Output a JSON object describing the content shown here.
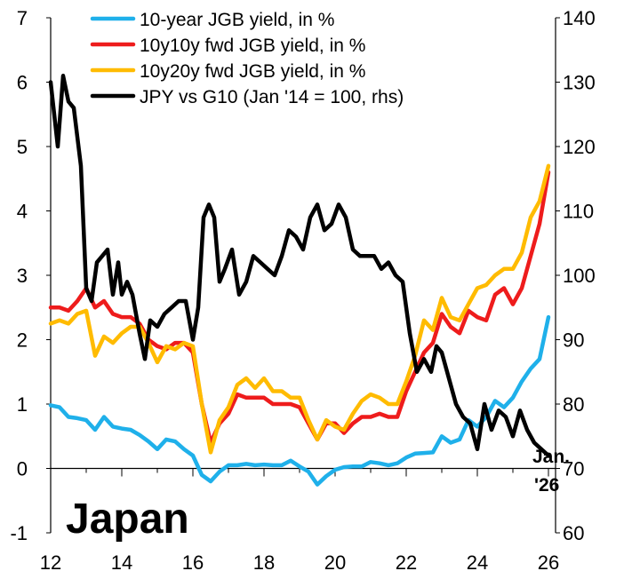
{
  "chart_data": {
    "type": "line",
    "title": "",
    "region_label": "Japan",
    "end_label": [
      "Jan.",
      "'26"
    ],
    "x_ticks": [
      "12",
      "14",
      "16",
      "18",
      "20",
      "22",
      "24",
      "26"
    ],
    "x_tick_values": [
      2012,
      2014,
      2016,
      2018,
      2020,
      2022,
      2024,
      2026
    ],
    "xlim": [
      2012,
      2026.2
    ],
    "y_left": {
      "ticks": [
        "-1",
        "0",
        "1",
        "2",
        "3",
        "4",
        "5",
        "6",
        "7"
      ],
      "tick_values": [
        -1,
        0,
        1,
        2,
        3,
        4,
        5,
        6,
        7
      ],
      "ylim": [
        -1,
        7
      ]
    },
    "y_right": {
      "ticks": [
        "60",
        "70",
        "80",
        "90",
        "100",
        "110",
        "120",
        "130",
        "140"
      ],
      "tick_values": [
        60,
        70,
        80,
        90,
        100,
        110,
        120,
        130,
        140
      ],
      "ylim": [
        60,
        140
      ]
    },
    "legend_position": "top",
    "grid": false,
    "series": [
      {
        "name": "10-year JGB yield, in %",
        "color": "#1fb0ea",
        "axis": "left",
        "x": [
          2012.0,
          2012.25,
          2012.5,
          2012.75,
          2013.0,
          2013.25,
          2013.5,
          2013.75,
          2014.0,
          2014.25,
          2014.5,
          2014.75,
          2015.0,
          2015.25,
          2015.5,
          2015.75,
          2016.0,
          2016.25,
          2016.5,
          2016.75,
          2017.0,
          2017.25,
          2017.5,
          2017.75,
          2018.0,
          2018.25,
          2018.5,
          2018.75,
          2019.0,
          2019.25,
          2019.5,
          2019.75,
          2020.0,
          2020.25,
          2020.5,
          2020.75,
          2021.0,
          2021.25,
          2021.5,
          2021.75,
          2022.0,
          2022.25,
          2022.5,
          2022.75,
          2023.0,
          2023.25,
          2023.5,
          2023.75,
          2024.0,
          2024.25,
          2024.5,
          2024.75,
          2025.0,
          2025.25,
          2025.5,
          2025.75,
          2026.0
        ],
        "values": [
          0.98,
          0.95,
          0.8,
          0.78,
          0.75,
          0.6,
          0.8,
          0.65,
          0.62,
          0.6,
          0.52,
          0.42,
          0.3,
          0.45,
          0.42,
          0.3,
          0.2,
          -0.1,
          -0.2,
          -0.05,
          0.05,
          0.05,
          0.07,
          0.05,
          0.06,
          0.05,
          0.05,
          0.12,
          0.03,
          -0.05,
          -0.25,
          -0.12,
          -0.02,
          0.02,
          0.03,
          0.03,
          0.1,
          0.08,
          0.05,
          0.08,
          0.17,
          0.23,
          0.24,
          0.25,
          0.5,
          0.4,
          0.45,
          0.75,
          0.65,
          0.8,
          1.05,
          0.95,
          1.1,
          1.35,
          1.55,
          1.7,
          2.35
        ]
      },
      {
        "name": "10y10y fwd JGB yield, in %",
        "color": "#ee1c1c",
        "axis": "left",
        "x": [
          2012.0,
          2012.25,
          2012.5,
          2012.75,
          2013.0,
          2013.25,
          2013.5,
          2013.75,
          2014.0,
          2014.25,
          2014.5,
          2014.75,
          2015.0,
          2015.25,
          2015.5,
          2015.75,
          2016.0,
          2016.25,
          2016.5,
          2016.75,
          2017.0,
          2017.25,
          2017.5,
          2017.75,
          2018.0,
          2018.25,
          2018.5,
          2018.75,
          2019.0,
          2019.25,
          2019.5,
          2019.75,
          2020.0,
          2020.25,
          2020.5,
          2020.75,
          2021.0,
          2021.25,
          2021.5,
          2021.75,
          2022.0,
          2022.25,
          2022.5,
          2022.75,
          2023.0,
          2023.25,
          2023.5,
          2023.75,
          2024.0,
          2024.25,
          2024.5,
          2024.75,
          2025.0,
          2025.25,
          2025.5,
          2025.75,
          2026.0
        ],
        "values": [
          2.5,
          2.5,
          2.45,
          2.6,
          2.8,
          2.5,
          2.6,
          2.4,
          2.35,
          2.35,
          2.25,
          2.0,
          1.9,
          1.85,
          1.95,
          1.95,
          1.8,
          1.0,
          0.4,
          0.7,
          0.85,
          1.15,
          1.1,
          1.1,
          1.1,
          1.0,
          1.0,
          1.0,
          0.95,
          0.7,
          0.45,
          0.7,
          0.7,
          0.55,
          0.7,
          0.8,
          0.8,
          0.85,
          0.8,
          0.8,
          1.2,
          1.5,
          1.8,
          1.95,
          2.4,
          2.2,
          2.1,
          2.45,
          2.35,
          2.3,
          2.7,
          2.8,
          2.55,
          2.8,
          3.3,
          3.8,
          4.6
        ]
      },
      {
        "name": "10y20y fwd JGB yield, in %",
        "color": "#ffbb00",
        "axis": "left",
        "x": [
          2012.0,
          2012.25,
          2012.5,
          2012.75,
          2013.0,
          2013.25,
          2013.5,
          2013.75,
          2014.0,
          2014.25,
          2014.5,
          2014.75,
          2015.0,
          2015.25,
          2015.5,
          2015.75,
          2016.0,
          2016.25,
          2016.5,
          2016.75,
          2017.0,
          2017.25,
          2017.5,
          2017.75,
          2018.0,
          2018.25,
          2018.5,
          2018.75,
          2019.0,
          2019.25,
          2019.5,
          2019.75,
          2020.0,
          2020.25,
          2020.5,
          2020.75,
          2021.0,
          2021.25,
          2021.5,
          2021.75,
          2022.0,
          2022.25,
          2022.5,
          2022.75,
          2023.0,
          2023.25,
          2023.5,
          2023.75,
          2024.0,
          2024.25,
          2024.5,
          2024.75,
          2025.0,
          2025.25,
          2025.5,
          2025.75,
          2026.0
        ],
        "values": [
          2.25,
          2.3,
          2.25,
          2.4,
          2.45,
          1.75,
          2.05,
          1.95,
          2.1,
          2.2,
          2.2,
          1.95,
          1.65,
          1.9,
          1.85,
          1.95,
          1.9,
          1.0,
          0.25,
          0.75,
          0.95,
          1.3,
          1.4,
          1.25,
          1.4,
          1.2,
          1.2,
          1.1,
          1.1,
          0.75,
          0.45,
          0.75,
          0.65,
          0.6,
          0.85,
          1.05,
          1.15,
          1.1,
          1.0,
          1.0,
          1.35,
          1.75,
          2.3,
          2.15,
          2.65,
          2.35,
          2.3,
          2.55,
          2.8,
          2.85,
          3.0,
          3.1,
          3.1,
          3.35,
          3.9,
          4.15,
          4.7
        ]
      },
      {
        "name": "JPY vs G10 (Jan '14 = 100, rhs)",
        "color": "#000000",
        "axis": "right",
        "x": [
          2012.0,
          2012.2,
          2012.35,
          2012.5,
          2012.65,
          2012.85,
          2013.0,
          2013.15,
          2013.3,
          2013.45,
          2013.6,
          2013.75,
          2013.9,
          2014.0,
          2014.15,
          2014.3,
          2014.5,
          2014.65,
          2014.8,
          2015.0,
          2015.2,
          2015.4,
          2015.6,
          2015.8,
          2016.0,
          2016.15,
          2016.3,
          2016.45,
          2016.6,
          2016.75,
          2016.9,
          2017.1,
          2017.3,
          2017.5,
          2017.7,
          2017.9,
          2018.1,
          2018.3,
          2018.5,
          2018.7,
          2018.9,
          2019.1,
          2019.3,
          2019.5,
          2019.7,
          2019.9,
          2020.1,
          2020.3,
          2020.5,
          2020.7,
          2020.9,
          2021.1,
          2021.3,
          2021.5,
          2021.7,
          2021.9,
          2022.1,
          2022.3,
          2022.5,
          2022.7,
          2022.85,
          2023.0,
          2023.2,
          2023.4,
          2023.6,
          2023.8,
          2024.0,
          2024.2,
          2024.4,
          2024.6,
          2024.8,
          2025.0,
          2025.2,
          2025.4,
          2025.6,
          2025.8,
          2026.0
        ],
        "values": [
          130,
          120,
          131,
          127,
          126,
          117,
          98,
          96,
          102,
          103,
          104,
          97,
          102,
          97,
          99,
          97,
          91,
          87,
          93,
          92,
          94,
          95,
          96,
          96,
          90,
          95,
          109,
          111,
          109,
          99,
          101,
          104,
          97,
          99,
          103,
          102,
          101,
          100,
          103,
          107,
          106,
          104,
          109,
          111,
          107,
          108,
          111,
          109,
          104,
          103,
          103,
          103,
          101,
          102,
          100,
          99,
          91,
          85,
          87,
          85,
          89,
          88,
          84,
          80,
          78,
          77,
          73,
          80,
          76,
          79,
          78,
          75,
          79,
          76,
          74,
          73,
          72
        ]
      }
    ]
  }
}
